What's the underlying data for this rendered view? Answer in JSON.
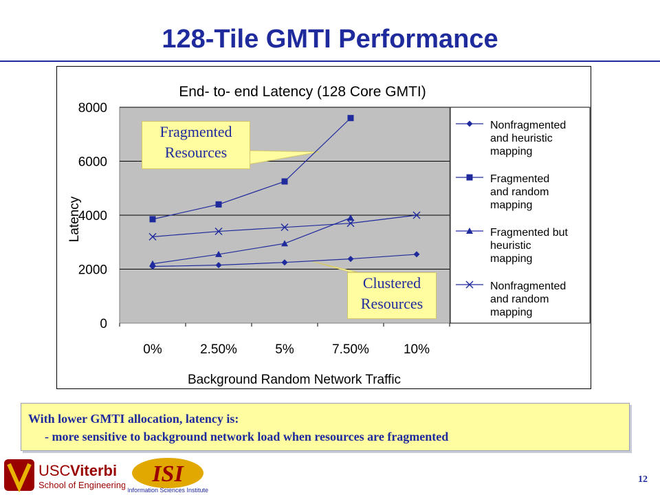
{
  "slide": {
    "title": "128-Tile GMTI Performance",
    "page_number": "12"
  },
  "callouts": {
    "fragmented": [
      "Fragmented",
      "Resources"
    ],
    "clustered": [
      "Clustered",
      "Resources"
    ]
  },
  "summary": {
    "line1": "With lower GMTI allocation, latency is:",
    "line2": "- more sensitive to background network load when resources are fragmented"
  },
  "logos": {
    "usc_line1": "USC",
    "usc_line1b": "Viterbi",
    "usc_line2": "School of Engineering",
    "isi_mark": "ISI",
    "isi_caption": "Information Sciences Institute"
  },
  "colors": {
    "series": "#1f2a9c",
    "plot_bg": "#c0c0c0",
    "callout_bg": "#fffda0",
    "usc_red": "#990000",
    "isi_gold": "#e0a800"
  },
  "chart_data": {
    "type": "line",
    "title": "End- to- end Latency (128 Core GMTI)",
    "xlabel": "Background Random Network Traffic",
    "ylabel": "Latency",
    "categories": [
      "0%",
      "2.50%",
      "5%",
      "7.50%",
      "10%"
    ],
    "ylim": [
      0,
      8000
    ],
    "yticks": [
      "0",
      "2000",
      "4000",
      "6000",
      "8000"
    ],
    "grid": "horizontal",
    "legend_position": "right",
    "series": [
      {
        "name": "Nonfragmented and heuristic mapping",
        "legend_lines": [
          "Nonfragmented",
          "and heuristic",
          "mapping"
        ],
        "marker": "diamond",
        "values": [
          2100,
          2150,
          2250,
          2380,
          2550
        ]
      },
      {
        "name": "Fragmented and random mapping",
        "legend_lines": [
          "Fragmented",
          "and random",
          "mapping"
        ],
        "marker": "square",
        "values": [
          3850,
          4400,
          5250,
          7600,
          null
        ]
      },
      {
        "name": "Fragmented but heuristic mapping",
        "legend_lines": [
          "Fragmented but",
          "heuristic",
          "mapping"
        ],
        "marker": "triangle",
        "values": [
          2200,
          2550,
          2950,
          3900,
          null
        ]
      },
      {
        "name": "Nonfragmented and random mapping",
        "legend_lines": [
          "Nonfragmented",
          "and random",
          "mapping"
        ],
        "marker": "x",
        "values": [
          3200,
          3400,
          3550,
          3700,
          4000
        ]
      }
    ]
  }
}
